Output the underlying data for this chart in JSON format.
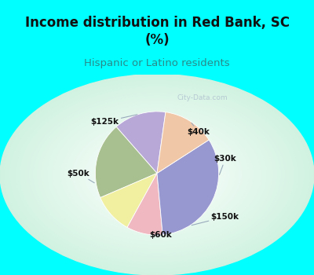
{
  "title": "Income distribution in Red Bank, SC\n(%)",
  "subtitle": "Hispanic or Latino residents",
  "title_color": "#111111",
  "subtitle_color": "#2a8a8a",
  "bg_color": "#00ffff",
  "slices": [
    {
      "label": "$40k",
      "value": 13,
      "color": "#b8a8d8"
    },
    {
      "label": "$30k",
      "value": 19,
      "color": "#a8c090"
    },
    {
      "label": "$150k",
      "value": 10,
      "color": "#f0f0a0"
    },
    {
      "label": "$60k",
      "value": 9,
      "color": "#f0b8c0"
    },
    {
      "label": "$50k",
      "value": 31,
      "color": "#9898d0"
    },
    {
      "label": "$125k",
      "value": 13,
      "color": "#f0c8a8"
    }
  ],
  "startangle": 82,
  "label_positions": {
    "$40k": {
      "xt": 0.38,
      "yt": 0.52,
      "ha": "left"
    },
    "$30k": {
      "xt": 0.72,
      "yt": 0.18,
      "ha": "left"
    },
    "$150k": {
      "xt": 0.68,
      "yt": -0.55,
      "ha": "left"
    },
    "$60k": {
      "xt": 0.05,
      "yt": -0.78,
      "ha": "center"
    },
    "$50k": {
      "xt": -0.85,
      "yt": 0.0,
      "ha": "right"
    },
    "$125k": {
      "xt": -0.48,
      "yt": 0.65,
      "ha": "right"
    }
  },
  "watermark": "City-Data.com"
}
